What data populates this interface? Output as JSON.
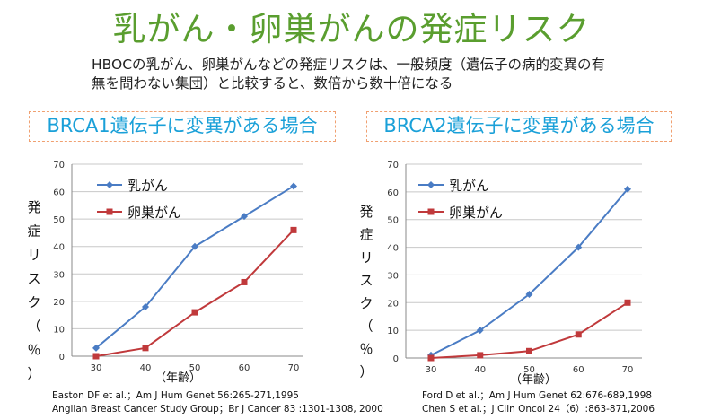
{
  "title": "乳がん・卵巣がんの発症リスク",
  "subtitle": "HBOCの乳がん、卵巣がんなどの発症リスクは、一般頻度（遺伝子の病的変異の有無を問わない集団）と比較すると、数倍から数十倍になる",
  "colors": {
    "title": "#5a9e2f",
    "heading": "#1aa0d8",
    "breast": "#4a7cc4",
    "ovary": "#c0393b",
    "border": "#f0a070"
  },
  "chart_data": [
    {
      "type": "line",
      "heading": "BRCA1遺伝子に変異がある場合",
      "xlabel": "（年齢）",
      "ylabel": "発症リスク（％）",
      "ylim": [
        0,
        70
      ],
      "yticks": [
        0,
        10,
        20,
        30,
        40,
        50,
        60,
        70
      ],
      "x": [
        30,
        40,
        50,
        60,
        70
      ],
      "series": [
        {
          "name": "乳がん",
          "values": [
            3,
            18,
            40,
            51,
            62
          ],
          "color": "#4a7cc4",
          "marker": "diamond"
        },
        {
          "name": "卵巣がん",
          "values": [
            0,
            3,
            16,
            27,
            46
          ],
          "color": "#c0393b",
          "marker": "square"
        }
      ],
      "grid": "horizontal",
      "legend": "top-left",
      "references": [
        "Easton DF et al.；Am J Hum Genet 56:265-271,1995",
        "Anglian Breast Cancer Study Group；Br J Cancer  83 :1301-1308, 2000"
      ]
    },
    {
      "type": "line",
      "heading": "BRCA2遺伝子に変異がある場合",
      "xlabel": "（年齢）",
      "ylabel": "発症リスク（％）",
      "ylim": [
        0,
        70
      ],
      "yticks": [
        0,
        10,
        20,
        30,
        40,
        50,
        60,
        70
      ],
      "x": [
        30,
        40,
        50,
        60,
        70
      ],
      "series": [
        {
          "name": "乳がん",
          "values": [
            1,
            10,
            23,
            40,
            61
          ],
          "color": "#4a7cc4",
          "marker": "diamond"
        },
        {
          "name": "卵巣がん",
          "values": [
            0,
            1,
            2.5,
            8.5,
            20
          ],
          "color": "#c0393b",
          "marker": "square"
        }
      ],
      "grid": "horizontal",
      "legend": "top-left",
      "references": [
        "Ford D et al.；Am J Hum Genet  62:676-689,1998",
        "Chen S et al.；J Clin Oncol 24（6）:863-871,2006"
      ]
    }
  ]
}
